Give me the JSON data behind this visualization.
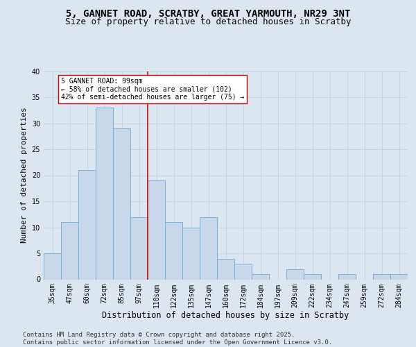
{
  "title1": "5, GANNET ROAD, SCRATBY, GREAT YARMOUTH, NR29 3NT",
  "title2": "Size of property relative to detached houses in Scratby",
  "xlabel": "Distribution of detached houses by size in Scratby",
  "ylabel": "Number of detached properties",
  "categories": [
    "35sqm",
    "47sqm",
    "60sqm",
    "72sqm",
    "85sqm",
    "97sqm",
    "110sqm",
    "122sqm",
    "135sqm",
    "147sqm",
    "160sqm",
    "172sqm",
    "184sqm",
    "197sqm",
    "209sqm",
    "222sqm",
    "234sqm",
    "247sqm",
    "259sqm",
    "272sqm",
    "284sqm"
  ],
  "values": [
    5,
    11,
    21,
    33,
    29,
    12,
    19,
    11,
    10,
    12,
    4,
    3,
    1,
    0,
    2,
    1,
    0,
    1,
    0,
    1,
    1
  ],
  "bar_color": "#c8d8ea",
  "bar_edge_color": "#7aafd4",
  "vline_x": 5.5,
  "vline_color": "#cc0000",
  "annotation_text": "5 GANNET ROAD: 99sqm\n← 58% of detached houses are smaller (102)\n42% of semi-detached houses are larger (75) →",
  "annotation_box_color": "#ffffff",
  "annotation_box_edge": "#cc0000",
  "grid_color": "#c8d4e4",
  "bg_color": "#dce6f0",
  "fig_bg_color": "#dce6f0",
  "ylim": [
    0,
    40
  ],
  "yticks": [
    0,
    5,
    10,
    15,
    20,
    25,
    30,
    35,
    40
  ],
  "footer": "Contains HM Land Registry data © Crown copyright and database right 2025.\nContains public sector information licensed under the Open Government Licence v3.0.",
  "title1_fontsize": 10,
  "title2_fontsize": 9,
  "xlabel_fontsize": 8.5,
  "ylabel_fontsize": 8,
  "tick_fontsize": 7,
  "footer_fontsize": 6.5,
  "ann_fontsize": 7
}
